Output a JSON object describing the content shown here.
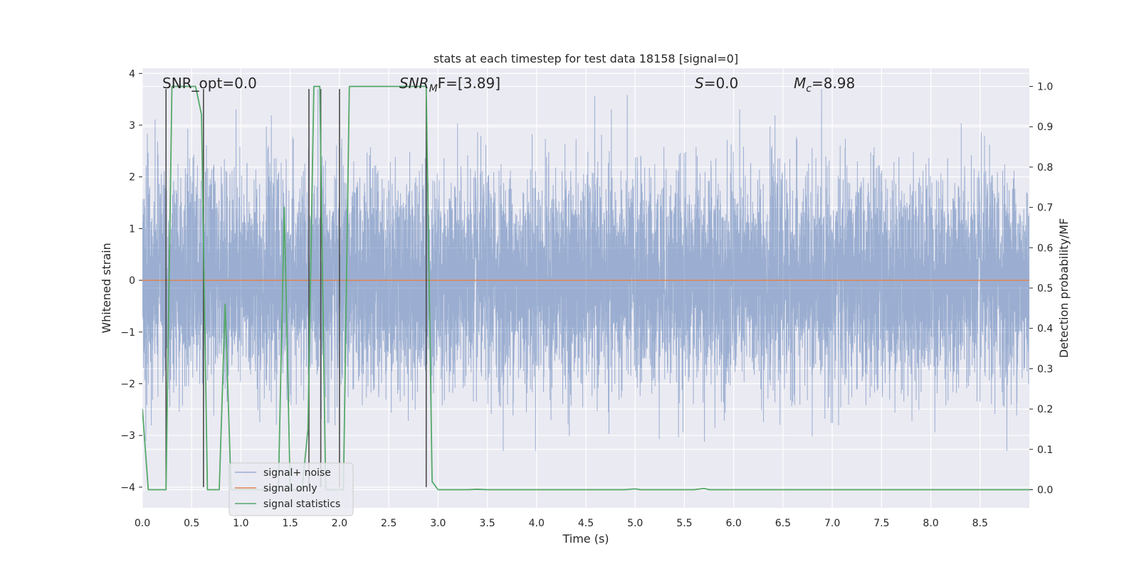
{
  "chart_data": {
    "type": "line",
    "title": "stats at each timestep for test data 18158 [signal=0]",
    "xlabel": "Time (s)",
    "ylabel": "Whitened strain",
    "y2label": "Detection probability/MF",
    "xlim": [
      0.0,
      9.0
    ],
    "ylim": [
      -4.4,
      4.1
    ],
    "y2lim": [
      -0.045,
      1.045
    ],
    "xticks": [
      "0.0",
      "0.5",
      "1.0",
      "1.5",
      "2.0",
      "2.5",
      "3.0",
      "3.5",
      "4.0",
      "4.5",
      "5.0",
      "5.5",
      "6.0",
      "6.5",
      "7.0",
      "7.5",
      "8.0",
      "8.5"
    ],
    "yticks": [
      "4",
      "3",
      "2",
      "1",
      "0",
      "−1",
      "−2",
      "−3",
      "−4"
    ],
    "y2ticks": [
      "1.0",
      "0.9",
      "0.8",
      "0.7",
      "0.6",
      "0.5",
      "0.4",
      "0.3",
      "0.2",
      "0.1",
      "0.0"
    ],
    "grid": true,
    "annotations": {
      "snr_opt": "SNR_opt=0.0",
      "snr_mf_main": "SNR",
      "snr_mf_sub": "M",
      "snr_mf_rest": "F=[3.89]",
      "s_main": "S",
      "s_rest": "=0.0",
      "mc_main": "M",
      "mc_sub": "c",
      "mc_rest": "=8.98"
    },
    "legend": {
      "placement": "bottom-left",
      "entries": [
        "signal+ noise",
        "signal only",
        "signal statistics"
      ]
    },
    "series": [
      {
        "name": "signal+ noise",
        "axis": "left",
        "color": "#4c72b0",
        "kind": "noise",
        "sample_rate_hz": 1024,
        "envelope_sigma": 1.0,
        "x_range": [
          0.0,
          9.0
        ]
      },
      {
        "name": "signal only",
        "axis": "left",
        "color": "#dd8452",
        "x": [
          0.0,
          9.0
        ],
        "values": [
          0.0,
          0.0
        ]
      },
      {
        "name": "signal statistics",
        "axis": "right",
        "color": "#55a868",
        "x": [
          0.0,
          0.06,
          0.12,
          0.18,
          0.24,
          0.3,
          0.36,
          0.42,
          0.48,
          0.54,
          0.6,
          0.66,
          0.72,
          0.78,
          0.84,
          0.9,
          0.96,
          1.02,
          1.08,
          1.14,
          1.2,
          1.26,
          1.32,
          1.38,
          1.44,
          1.5,
          1.56,
          1.62,
          1.68,
          1.74,
          1.8,
          1.86,
          1.92,
          1.98,
          2.04,
          2.1,
          2.16,
          2.22,
          2.28,
          2.34,
          2.4,
          2.46,
          2.52,
          2.58,
          2.64,
          2.7,
          2.76,
          2.82,
          2.88,
          2.94,
          3.0,
          3.1,
          3.2,
          3.3,
          3.4,
          3.5,
          3.6,
          3.7,
          3.8,
          3.9,
          4.0,
          4.5,
          4.9,
          5.0,
          5.05,
          5.5,
          5.6,
          5.7,
          5.75,
          6.0,
          6.5,
          7.0,
          7.5,
          8.0,
          8.5,
          9.0
        ],
        "values": [
          0.2,
          0.0,
          0.0,
          0.0,
          0.0,
          1.0,
          1.0,
          1.0,
          1.0,
          1.0,
          0.93,
          0.0,
          0.0,
          0.0,
          0.46,
          0.0,
          0.0,
          0.0,
          0.0,
          0.0,
          0.0,
          0.0,
          0.0,
          0.0,
          0.7,
          0.0,
          0.0,
          0.0,
          0.15,
          1.0,
          1.0,
          0.0,
          0.0,
          0.0,
          0.0,
          1.0,
          1.0,
          1.0,
          1.0,
          1.0,
          1.0,
          1.0,
          1.0,
          1.0,
          1.0,
          1.0,
          1.0,
          1.0,
          1.0,
          0.02,
          0.0,
          0.0,
          0.0,
          0.0,
          0.001,
          0.0,
          0.0,
          0.0,
          0.0,
          0.0,
          0.0,
          0.0,
          0.0,
          0.002,
          0.0,
          0.0,
          0.0,
          0.003,
          0.0,
          0.0,
          0.0,
          0.0,
          0.0,
          0.0,
          0.0,
          0.0
        ]
      }
    ],
    "markers": {
      "name": "decision markers",
      "axis": "left",
      "color": "#4a4a4a",
      "x": [
        0.24,
        0.62,
        1.69,
        1.81,
        2.0,
        2.88
      ],
      "y_ranges": [
        [
          -4.0,
          3.7
        ],
        [
          -4.0,
          3.7
        ],
        [
          -4.0,
          3.7
        ],
        [
          -4.0,
          3.7
        ],
        [
          -4.0,
          3.7
        ],
        [
          -4.0,
          3.7
        ]
      ]
    }
  }
}
